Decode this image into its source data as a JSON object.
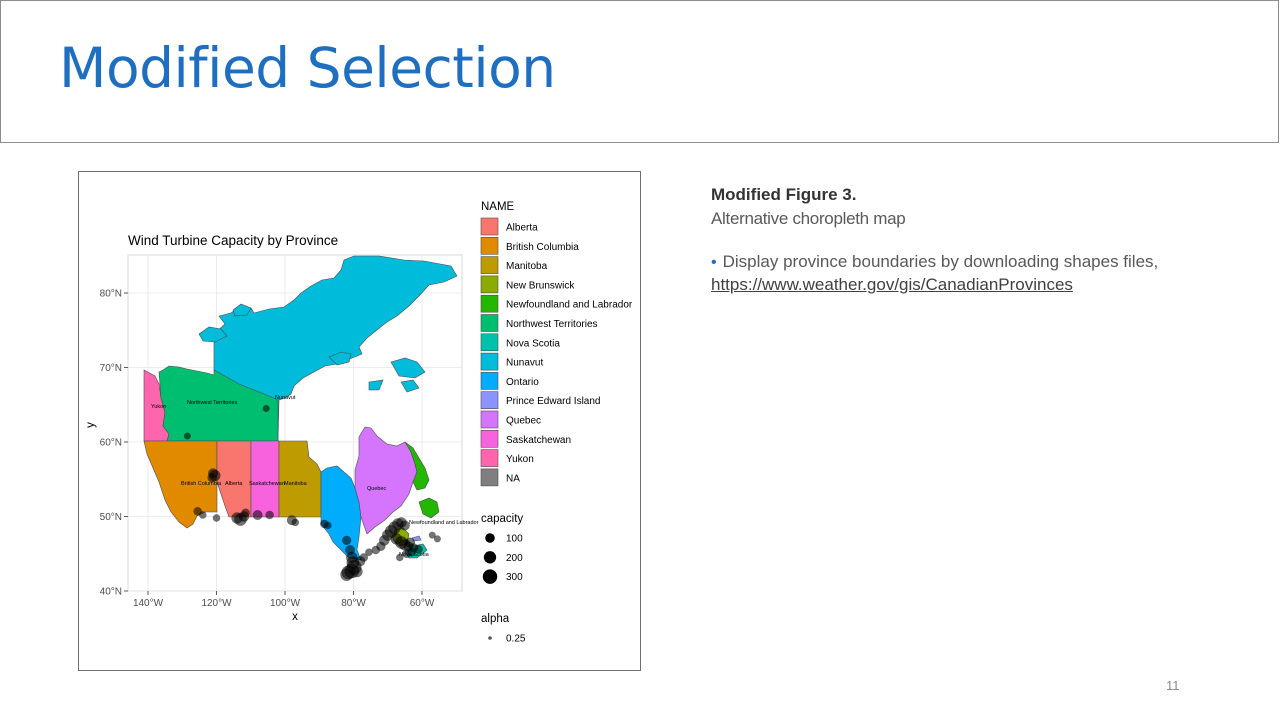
{
  "slide": {
    "title": "Modified Selection",
    "page_number": "11"
  },
  "caption": {
    "title": "Modified Figure 3.",
    "subtitle": "Alternative choropleth map",
    "bullet_text": "Display province boundaries by downloading shapes files,",
    "link": "https://www.weather.gov/gis/CanadianProvinces"
  },
  "chart_data": {
    "type": "map",
    "title": "Wind Turbine Capacity by Province",
    "xlabel": "x",
    "ylabel": "y",
    "x_ticks": [
      "140°W",
      "120°W",
      "100°W",
      "80°W",
      "60°W"
    ],
    "y_ticks": [
      "40°N",
      "50°N",
      "60°N",
      "70°N",
      "80°N"
    ],
    "fill_legend": {
      "title": "NAME",
      "entries": [
        {
          "label": "Alberta",
          "color": "#f8766d"
        },
        {
          "label": "British Columbia",
          "color": "#e18a00"
        },
        {
          "label": "Manitoba",
          "color": "#be9c00"
        },
        {
          "label": "New Brunswick",
          "color": "#8cab00"
        },
        {
          "label": "Newfoundland and Labrador",
          "color": "#24b700"
        },
        {
          "label": "Northwest Territories",
          "color": "#00be70"
        },
        {
          "label": "Nova Scotia",
          "color": "#00c1ab"
        },
        {
          "label": "Nunavut",
          "color": "#00bbda"
        },
        {
          "label": "Ontario",
          "color": "#00acfc"
        },
        {
          "label": "Prince Edward Island",
          "color": "#8b93ff"
        },
        {
          "label": "Quebec",
          "color": "#d575fe"
        },
        {
          "label": "Saskatchewan",
          "color": "#f962dd"
        },
        {
          "label": "Yukon",
          "color": "#ff65ac"
        },
        {
          "label": "NA",
          "color": "#7f7f7f"
        }
      ]
    },
    "size_legend": {
      "title": "capacity",
      "entries": [
        {
          "label": "100",
          "value": 100
        },
        {
          "label": "200",
          "value": 200
        },
        {
          "label": "300",
          "value": 300
        }
      ]
    },
    "alpha_legend": {
      "title": "alpha",
      "entries": [
        {
          "label": "0.25"
        }
      ]
    },
    "map_labels": [
      "Yukon",
      "Northwest Territories",
      "Nunavut",
      "British Columbia",
      "Alberta",
      "Saskatchewan",
      "Manitoba",
      "Quebec",
      "Newfoundland and Labrador",
      "Nova Scotia"
    ],
    "points": [
      {
        "lon": -128.5,
        "lat": 60.8,
        "capacity": 30
      },
      {
        "lon": -105.5,
        "lat": 64.5,
        "capacity": 30
      },
      {
        "lon": -121.0,
        "lat": 55.8,
        "capacity": 100
      },
      {
        "lon": -120.5,
        "lat": 55.5,
        "capacity": 150
      },
      {
        "lon": -121.3,
        "lat": 55.2,
        "capacity": 80
      },
      {
        "lon": -125.5,
        "lat": 50.7,
        "capacity": 60
      },
      {
        "lon": -124.0,
        "lat": 50.2,
        "capacity": 40
      },
      {
        "lon": -120.0,
        "lat": 49.8,
        "capacity": 40
      },
      {
        "lon": -114.0,
        "lat": 49.8,
        "capacity": 150
      },
      {
        "lon": -113.0,
        "lat": 49.6,
        "capacity": 200
      },
      {
        "lon": -112.0,
        "lat": 50.0,
        "capacity": 120
      },
      {
        "lon": -111.5,
        "lat": 50.5,
        "capacity": 60
      },
      {
        "lon": -108.0,
        "lat": 50.2,
        "capacity": 100
      },
      {
        "lon": -104.5,
        "lat": 50.2,
        "capacity": 60
      },
      {
        "lon": -98.0,
        "lat": 49.5,
        "capacity": 100
      },
      {
        "lon": -97.0,
        "lat": 49.2,
        "capacity": 40
      },
      {
        "lon": -88.5,
        "lat": 49.0,
        "capacity": 60
      },
      {
        "lon": -87.5,
        "lat": 48.8,
        "capacity": 40
      },
      {
        "lon": -82.0,
        "lat": 46.8,
        "capacity": 80
      },
      {
        "lon": -81.0,
        "lat": 45.5,
        "capacity": 100
      },
      {
        "lon": -80.5,
        "lat": 44.5,
        "capacity": 150
      },
      {
        "lon": -80.2,
        "lat": 43.8,
        "capacity": 200
      },
      {
        "lon": -79.8,
        "lat": 43.2,
        "capacity": 300
      },
      {
        "lon": -80.5,
        "lat": 42.7,
        "capacity": 300
      },
      {
        "lon": -81.5,
        "lat": 42.5,
        "capacity": 250
      },
      {
        "lon": -82.0,
        "lat": 42.2,
        "capacity": 200
      },
      {
        "lon": -79.0,
        "lat": 42.6,
        "capacity": 150
      },
      {
        "lon": -78.0,
        "lat": 44.0,
        "capacity": 100
      },
      {
        "lon": -77.0,
        "lat": 44.5,
        "capacity": 60
      },
      {
        "lon": -75.5,
        "lat": 45.2,
        "capacity": 40
      },
      {
        "lon": -73.5,
        "lat": 45.5,
        "capacity": 60
      },
      {
        "lon": -72.0,
        "lat": 46.0,
        "capacity": 80
      },
      {
        "lon": -71.0,
        "lat": 46.8,
        "capacity": 120
      },
      {
        "lon": -70.0,
        "lat": 47.5,
        "capacity": 150
      },
      {
        "lon": -69.0,
        "lat": 48.0,
        "capacity": 200
      },
      {
        "lon": -68.0,
        "lat": 48.5,
        "capacity": 200
      },
      {
        "lon": -67.0,
        "lat": 49.0,
        "capacity": 150
      },
      {
        "lon": -66.0,
        "lat": 49.2,
        "capacity": 120
      },
      {
        "lon": -65.0,
        "lat": 48.8,
        "capacity": 100
      },
      {
        "lon": -67.5,
        "lat": 47.0,
        "capacity": 150
      },
      {
        "lon": -66.0,
        "lat": 46.5,
        "capacity": 200
      },
      {
        "lon": -65.0,
        "lat": 46.2,
        "capacity": 150
      },
      {
        "lon": -64.0,
        "lat": 46.0,
        "capacity": 100
      },
      {
        "lon": -63.5,
        "lat": 46.5,
        "capacity": 100
      },
      {
        "lon": -62.5,
        "lat": 45.8,
        "capacity": 80
      },
      {
        "lon": -64.5,
        "lat": 45.0,
        "capacity": 60
      },
      {
        "lon": -63.0,
        "lat": 45.2,
        "capacity": 60
      },
      {
        "lon": -61.0,
        "lat": 45.6,
        "capacity": 60
      },
      {
        "lon": -66.5,
        "lat": 44.5,
        "capacity": 40
      },
      {
        "lon": -57.0,
        "lat": 47.5,
        "capacity": 30
      },
      {
        "lon": -55.5,
        "lat": 47.0,
        "capacity": 30
      }
    ]
  }
}
